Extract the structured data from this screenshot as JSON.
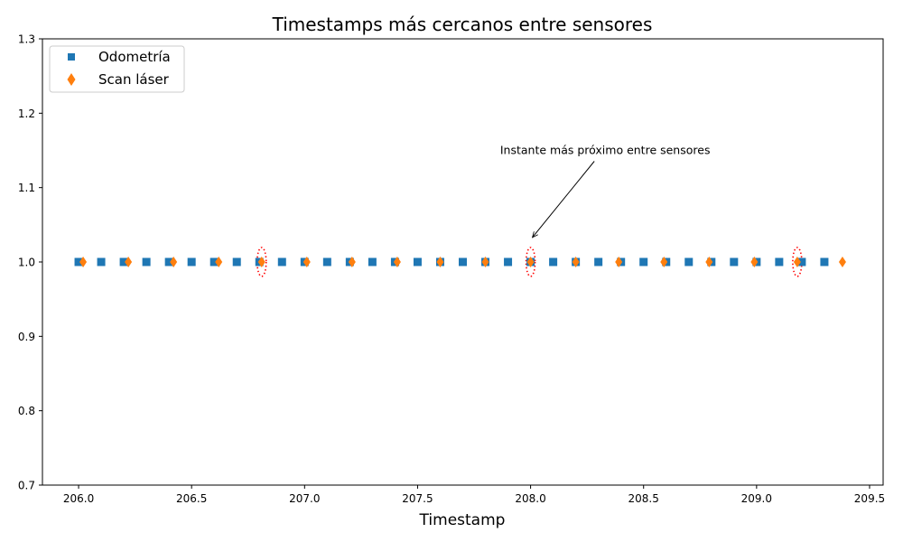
{
  "chart_data": {
    "type": "scatter",
    "title": "Timestamps más cercanos entre sensores",
    "xlabel": "Timestamp",
    "ylabel": "",
    "xlim": [
      205.84,
      209.56
    ],
    "ylim": [
      0.7,
      1.3
    ],
    "xticks": [
      206.0,
      206.5,
      207.0,
      207.5,
      208.0,
      208.5,
      209.0,
      209.5
    ],
    "xtick_labels": [
      "206.0",
      "206.5",
      "207.0",
      "207.5",
      "208.0",
      "208.5",
      "209.0",
      "209.5"
    ],
    "yticks": [
      0.7,
      0.8,
      0.9,
      1.0,
      1.1,
      1.2,
      1.3
    ],
    "ytick_labels": [
      "0.7",
      "0.8",
      "0.9",
      "1.0",
      "1.1",
      "1.2",
      "1.3"
    ],
    "grid": false,
    "legend_position": "top-left",
    "series": [
      {
        "name": "Odometría",
        "marker": "square",
        "color": "#1f77b4",
        "x": [
          206.0,
          206.1,
          206.2,
          206.3,
          206.4,
          206.5,
          206.6,
          206.7,
          206.8,
          206.9,
          207.0,
          207.1,
          207.2,
          207.3,
          207.4,
          207.5,
          207.6,
          207.7,
          207.8,
          207.9,
          208.0,
          208.1,
          208.2,
          208.3,
          208.4,
          208.5,
          208.6,
          208.7,
          208.8,
          208.9,
          209.0,
          209.1,
          209.2,
          209.3
        ],
        "y": [
          1.0,
          1.0,
          1.0,
          1.0,
          1.0,
          1.0,
          1.0,
          1.0,
          1.0,
          1.0,
          1.0,
          1.0,
          1.0,
          1.0,
          1.0,
          1.0,
          1.0,
          1.0,
          1.0,
          1.0,
          1.0,
          1.0,
          1.0,
          1.0,
          1.0,
          1.0,
          1.0,
          1.0,
          1.0,
          1.0,
          1.0,
          1.0,
          1.0,
          1.0
        ]
      },
      {
        "name": "Scan láser",
        "marker": "thin_diamond",
        "color": "#ff7f0e",
        "x": [
          206.02,
          206.22,
          206.42,
          206.62,
          206.81,
          207.01,
          207.21,
          207.41,
          207.6,
          207.8,
          208.0,
          208.2,
          208.39,
          208.59,
          208.79,
          208.99,
          209.18,
          209.38
        ],
        "y": [
          1.0,
          1.0,
          1.0,
          1.0,
          1.0,
          1.0,
          1.0,
          1.0,
          1.0,
          1.0,
          1.0,
          1.0,
          1.0,
          1.0,
          1.0,
          1.0,
          1.0,
          1.0
        ]
      }
    ],
    "highlights": [
      {
        "x": 206.81,
        "y": 1.0,
        "color": "#ff0000"
      },
      {
        "x": 208.0,
        "y": 1.0,
        "color": "#ff0000"
      },
      {
        "x": 209.18,
        "y": 1.0,
        "color": "#ff0000"
      }
    ],
    "annotation": {
      "text": "Instante más próximo entre sensores",
      "xy": [
        208.0,
        1.033
      ],
      "xytext": [
        208.33,
        1.15
      ]
    }
  }
}
